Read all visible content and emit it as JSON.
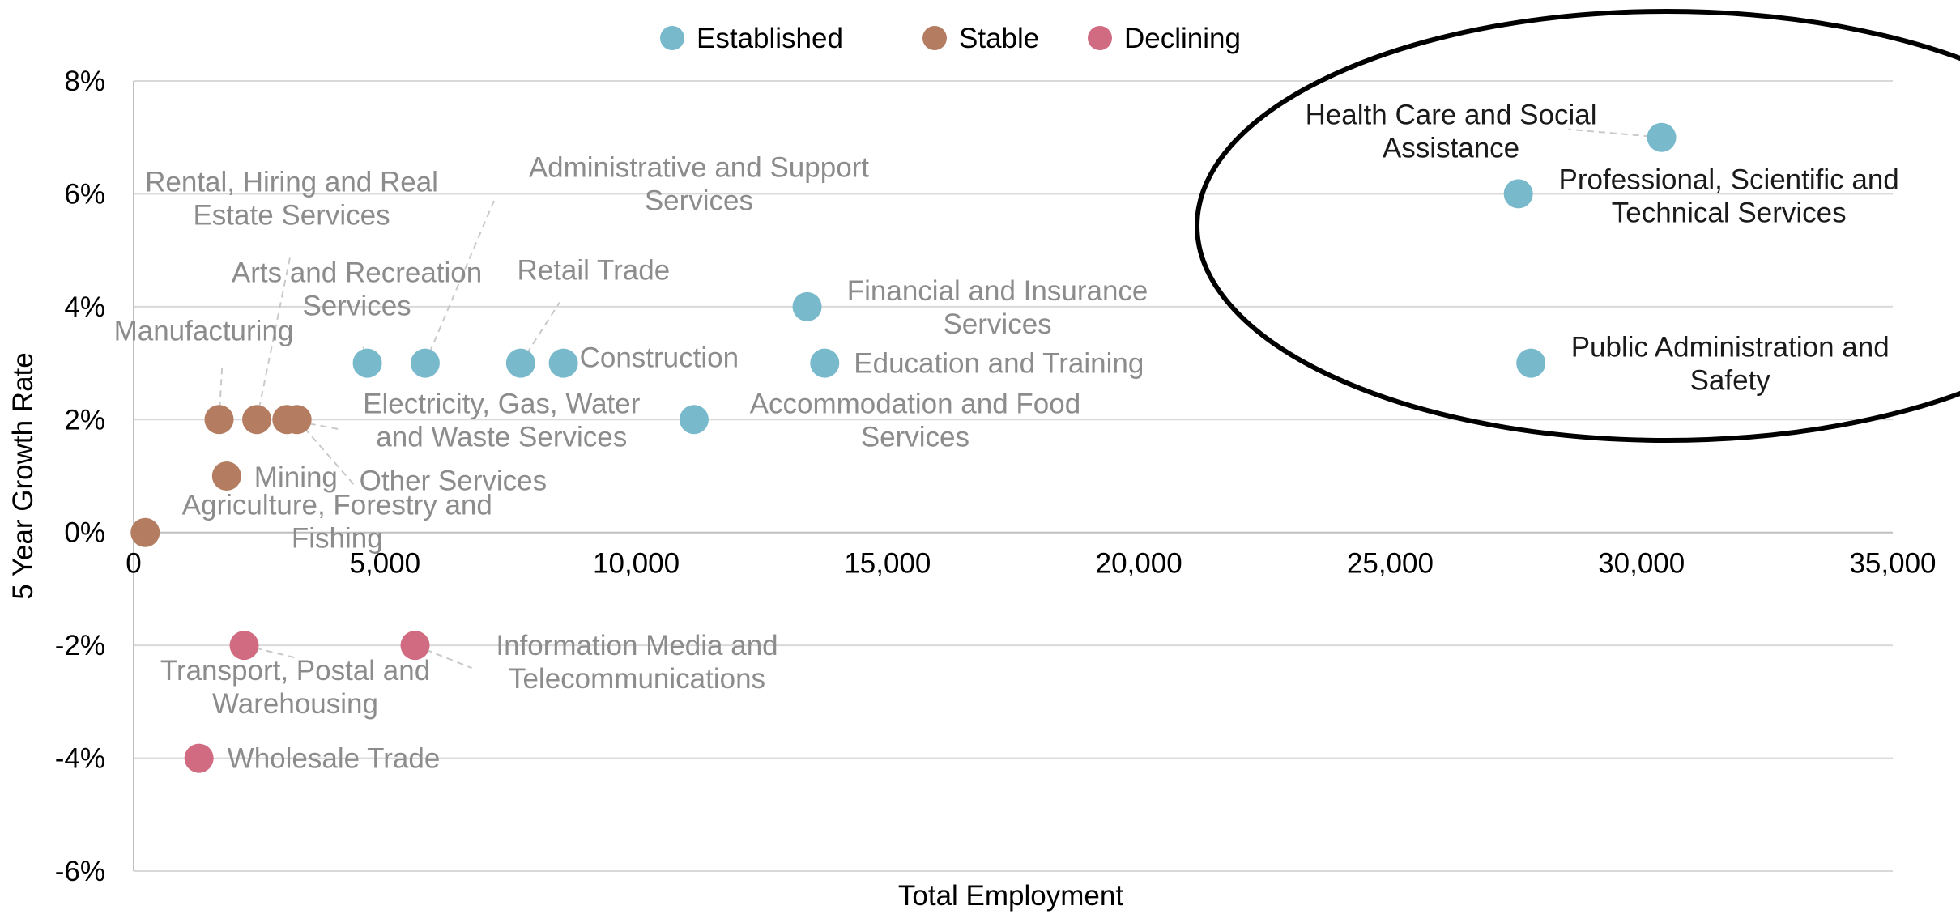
{
  "colors": {
    "established": "#79b9cc",
    "stable": "#b47d62",
    "declining": "#d16b81",
    "label_muted": "#8c8c8c",
    "label_dark": "#1a1a1a"
  },
  "chart_data": {
    "type": "scatter",
    "xlabel": "Total Employment",
    "ylabel": "5 Year Growth Rate",
    "xlim": [
      0,
      35000
    ],
    "ylim": [
      -6,
      8
    ],
    "x_ticks": [
      0,
      5000,
      10000,
      15000,
      20000,
      25000,
      30000,
      35000
    ],
    "x_tick_labels": [
      "0",
      "5,000",
      "10,000",
      "15,000",
      "20,000",
      "25,000",
      "30,000",
      "35,000"
    ],
    "y_ticks": [
      -6,
      -4,
      -2,
      0,
      2,
      4,
      6,
      8
    ],
    "y_tick_labels": [
      "-6%",
      "-4%",
      "-2%",
      "0%",
      "2%",
      "4%",
      "6%",
      "8%"
    ],
    "grid": "horizontal",
    "legend_position": "top-center",
    "series": [
      {
        "name": "Established",
        "color_key": "established",
        "points": [
          {
            "label": "Health Care and Social Assistance",
            "x": 30400,
            "y": 7
          },
          {
            "label": "Professional, Scientific and Technical Services",
            "x": 27550,
            "y": 6
          },
          {
            "label": "Public Administration and Safety",
            "x": 27800,
            "y": 3
          },
          {
            "label": "Financial and Insurance Services",
            "x": 13400,
            "y": 4
          },
          {
            "label": "Education and Training",
            "x": 13750,
            "y": 3
          },
          {
            "label": "Accommodation and Food Services",
            "x": 11150,
            "y": 2
          },
          {
            "label": "Construction",
            "x": 8550,
            "y": 3
          },
          {
            "label": "Retail Trade",
            "x": 7700,
            "y": 3
          },
          {
            "label": "Administrative and Support Services",
            "x": 5800,
            "y": 3
          },
          {
            "label": "Arts and Recreation Services",
            "x": 4650,
            "y": 3
          }
        ]
      },
      {
        "name": "Stable",
        "color_key": "stable",
        "points": [
          {
            "label": "Manufacturing",
            "x": 1700,
            "y": 2
          },
          {
            "label": "Rental, Hiring and Real Estate Services",
            "x": 2450,
            "y": 2
          },
          {
            "label": "Electricity, Gas, Water and Waste Services",
            "x": 3050,
            "y": 2
          },
          {
            "label": "Other Services",
            "x": 3250,
            "y": 2
          },
          {
            "label": "Mining",
            "x": 1850,
            "y": 1
          },
          {
            "label": "Agriculture, Forestry and Fishing",
            "x": 230,
            "y": 0
          }
        ]
      },
      {
        "name": "Declining",
        "color_key": "declining",
        "points": [
          {
            "label": "Transport, Postal and Warehousing",
            "x": 2200,
            "y": -2
          },
          {
            "label": "Information Media and Telecommunications",
            "x": 5600,
            "y": -2
          },
          {
            "label": "Wholesale Trade",
            "x": 1300,
            "y": -4
          }
        ]
      }
    ],
    "annotations": [
      {
        "type": "ellipse",
        "description": "highlight",
        "encloses": [
          "Health Care and Social Assistance",
          "Professional, Scientific and Technical Services",
          "Public Administration and Safety"
        ]
      }
    ]
  }
}
